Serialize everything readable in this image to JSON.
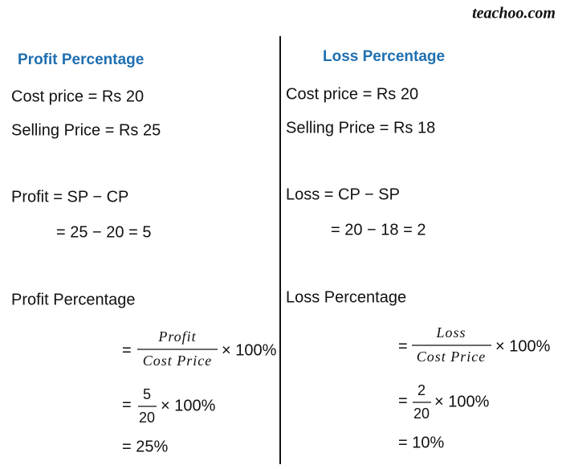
{
  "brand": "teachoo.com",
  "left": {
    "heading": "Profit Percentage",
    "lines": [
      "Cost price = Rs 20",
      "Selling Price = Rs 25",
      "Profit = SP − CP",
      "= 25 − 20 = 5",
      "Profit Percentage"
    ],
    "formula": {
      "prefix": "=",
      "numerator": "Profit",
      "denominator": "Cost Price",
      "suffix": "× 100%"
    },
    "substituted": {
      "prefix": "=",
      "numerator": "5",
      "denominator": "20",
      "suffix": "× 100%"
    },
    "result": "= 25%"
  },
  "right": {
    "heading": "Loss Percentage",
    "lines": [
      "Cost price = Rs 20",
      "Selling Price = Rs 18",
      "Loss = CP − SP",
      "= 20 − 18 = 2",
      "Loss Percentage"
    ],
    "formula": {
      "prefix": "=",
      "numerator": "Loss",
      "denominator": "Cost Price",
      "suffix": "× 100%"
    },
    "substituted": {
      "prefix": "=",
      "numerator": "2",
      "denominator": "20",
      "suffix": "× 100%"
    },
    "result": "= 10%"
  }
}
